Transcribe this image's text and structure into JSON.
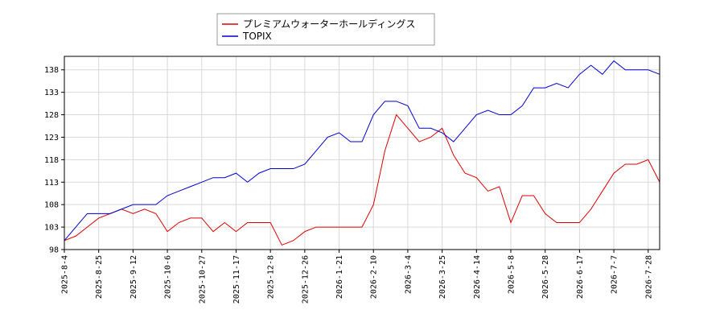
{
  "chart_data": {
    "type": "line",
    "categories": [
      "2025-8-4",
      null,
      null,
      "2025-8-25",
      null,
      null,
      "2025-9-12",
      null,
      null,
      "2025-10-6",
      null,
      null,
      "2025-10-27",
      null,
      null,
      "2025-11-17",
      null,
      null,
      "2025-12-8",
      null,
      null,
      "2025-12-26",
      null,
      null,
      "2026-1-21",
      null,
      null,
      "2026-2-10",
      null,
      null,
      "2026-3-4",
      null,
      null,
      "2026-3-25",
      null,
      null,
      "2026-4-14",
      null,
      null,
      "2026-5-8",
      null,
      null,
      "2026-5-28",
      null,
      null,
      "2026-6-17",
      null,
      null,
      "2026-7-7",
      null,
      null,
      "2026-7-28",
      null
    ],
    "series": [
      {
        "name": "プレミアムウォーターホールディングス",
        "color": "#dd0000",
        "values": [
          100,
          101,
          103,
          105,
          106,
          107,
          106,
          107,
          106,
          102,
          104,
          105,
          105,
          102,
          104,
          102,
          104,
          104,
          104,
          99,
          100,
          102,
          103,
          103,
          103,
          103,
          103,
          108,
          120,
          128,
          125,
          122,
          123,
          125,
          119,
          115,
          114,
          111,
          112,
          104,
          110,
          110,
          106,
          104,
          104,
          104,
          107,
          111,
          115,
          117,
          117,
          118,
          113
        ]
      },
      {
        "name": "TOPIX",
        "color": "#0000cc",
        "values": [
          100,
          103,
          106,
          106,
          106,
          107,
          108,
          108,
          108,
          110,
          111,
          112,
          113,
          114,
          114,
          115,
          113,
          115,
          116,
          116,
          116,
          117,
          120,
          123,
          124,
          122,
          122,
          128,
          131,
          131,
          130,
          125,
          125,
          124,
          122,
          125,
          128,
          129,
          128,
          128,
          130,
          134,
          134,
          135,
          134,
          137,
          139,
          137,
          140,
          138,
          138,
          138,
          137
        ]
      }
    ],
    "ylim": [
      98,
      141
    ],
    "yticks": [
      98,
      103,
      108,
      113,
      118,
      123,
      128,
      133,
      138
    ],
    "grid": true,
    "legend": "top"
  }
}
